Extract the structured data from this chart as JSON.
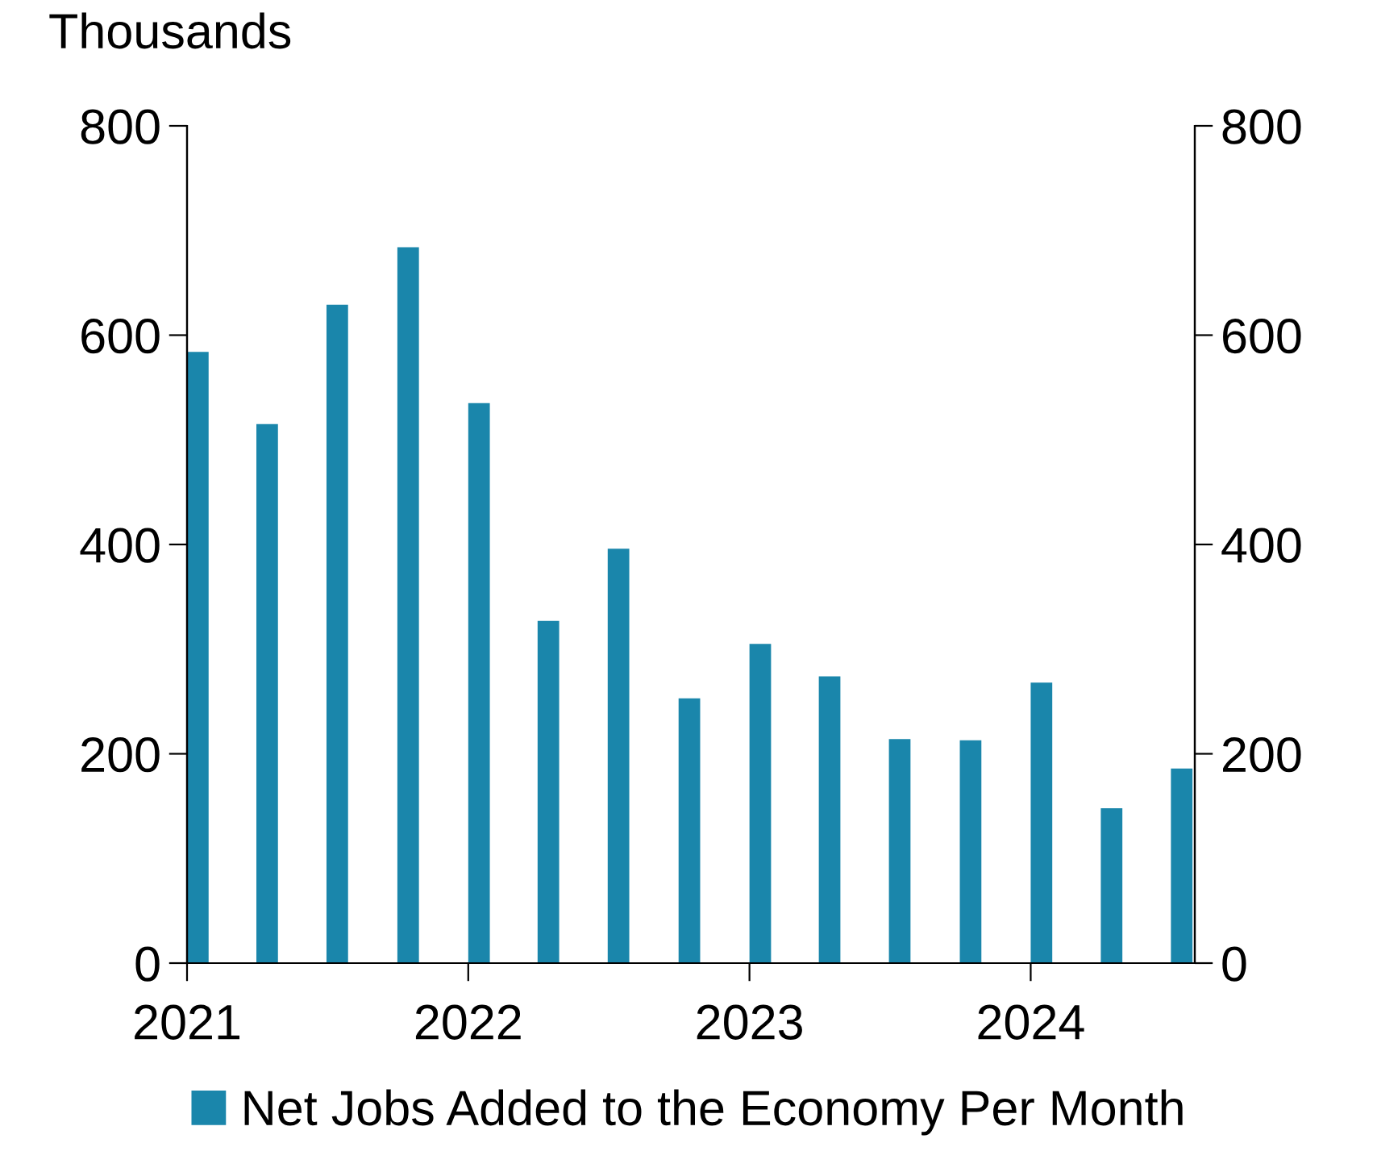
{
  "chart_data": {
    "type": "bar",
    "ylabel": "Thousands",
    "x": [
      "2021-01-15",
      "2021-04-15",
      "2021-07-15",
      "2021-10-15",
      "2022-01-15",
      "2022-04-15",
      "2022-07-15",
      "2022-10-15",
      "2023-01-15",
      "2023-04-15",
      "2023-07-15",
      "2023-10-15",
      "2024-01-15",
      "2024-04-15",
      "2024-07-15"
    ],
    "series": [
      {
        "name": "Net Jobs Added to the Economy Per Month",
        "color": "#1a86ab",
        "values": [
          584,
          515,
          629,
          684,
          535,
          327,
          396,
          253,
          305,
          274,
          214,
          213,
          268,
          148,
          186
        ]
      }
    ],
    "xlim": [
      "2021-01",
      "2024-08"
    ],
    "xticks": [
      "2021",
      "2022",
      "2023",
      "2024"
    ],
    "ylim": [
      0,
      800
    ],
    "yticks": [
      0,
      200,
      400,
      600,
      800
    ],
    "y2lim": [
      0,
      800
    ],
    "y2ticks": [
      0,
      200,
      400,
      600,
      800
    ],
    "grid": false,
    "legend": "bottom"
  }
}
